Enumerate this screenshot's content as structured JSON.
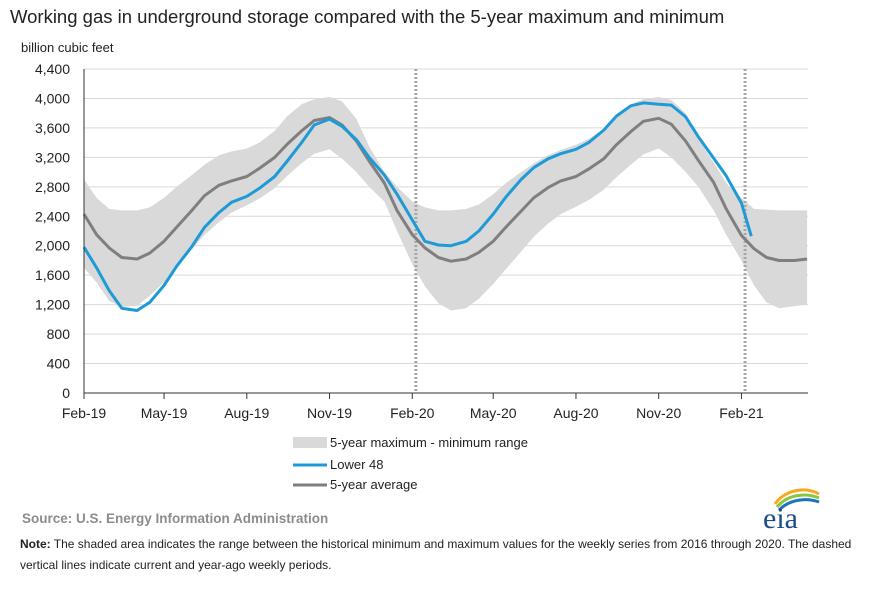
{
  "title": "Working gas in underground  storage compared with the 5-year maximum and minimum",
  "unit_label": "billion cubic feet",
  "source": "Source:  U.S. Energy Information Administration",
  "note_label": "Note:",
  "note_text": " The shaded area indicates the range between the historical minimum and maximum values for the weekly series from 2016 through 2020. The dashed vertical lines indicate current and year-ago weekly periods.",
  "logo_text": "eia",
  "colors": {
    "range_fill": "#d9d9d9",
    "lower48": "#1e9bd7",
    "avg": "#7f7f7f",
    "axis": "#333333",
    "gridline": "#d9d9d9",
    "dashed": "#a6a6a6"
  },
  "chart_data": {
    "type": "area",
    "title": "Working gas in underground  storage compared with the 5-year maximum and minimum",
    "ylabel": "billion cubic feet",
    "ylim": [
      0,
      4400
    ],
    "yticks": [
      "0",
      "400",
      "800",
      "1,200",
      "1,600",
      "2,000",
      "2,400",
      "2,800",
      "3,200",
      "3,600",
      "4,000",
      "4,400"
    ],
    "xlim": [
      "2019-02-01",
      "2021-04-16"
    ],
    "xticks": [
      {
        "date": "2019-02-01",
        "label": "Feb-19"
      },
      {
        "date": "2019-05-01",
        "label": "May-19"
      },
      {
        "date": "2019-08-01",
        "label": "Aug-19"
      },
      {
        "date": "2019-11-01",
        "label": "Nov-19"
      },
      {
        "date": "2020-02-01",
        "label": "Feb-20"
      },
      {
        "date": "2020-05-01",
        "label": "May-20"
      },
      {
        "date": "2020-08-01",
        "label": "Aug-20"
      },
      {
        "date": "2020-11-01",
        "label": "Nov-20"
      },
      {
        "date": "2021-02-01",
        "label": "Feb-21"
      }
    ],
    "grid": "horizontal",
    "legend_position": "bottom",
    "vertical_dashed_dates": [
      "2020-02-05",
      "2021-02-05"
    ],
    "range_series": {
      "name": "5-year maximum - minimum range",
      "dates": [
        "2019-02-01",
        "2019-02-15",
        "2019-03-01",
        "2019-03-15",
        "2019-04-01",
        "2019-04-15",
        "2019-05-01",
        "2019-05-15",
        "2019-06-01",
        "2019-06-15",
        "2019-07-01",
        "2019-07-15",
        "2019-08-01",
        "2019-08-15",
        "2019-09-01",
        "2019-09-15",
        "2019-10-01",
        "2019-10-15",
        "2019-11-01",
        "2019-11-15",
        "2019-12-01",
        "2019-12-15",
        "2020-01-01",
        "2020-01-15",
        "2020-02-01",
        "2020-02-15",
        "2020-03-01",
        "2020-03-15",
        "2020-04-01",
        "2020-04-15",
        "2020-05-01",
        "2020-05-15",
        "2020-06-01",
        "2020-06-15",
        "2020-07-01",
        "2020-07-15",
        "2020-08-01",
        "2020-08-15",
        "2020-09-01",
        "2020-09-15",
        "2020-10-01",
        "2020-10-15",
        "2020-11-01",
        "2020-11-15",
        "2020-12-01",
        "2020-12-15",
        "2021-01-01",
        "2021-01-15",
        "2021-02-01",
        "2021-02-15",
        "2021-03-01",
        "2021-03-15",
        "2021-04-01",
        "2021-04-15"
      ],
      "max": [
        2900,
        2650,
        2500,
        2480,
        2480,
        2520,
        2650,
        2800,
        2960,
        3100,
        3230,
        3280,
        3320,
        3400,
        3560,
        3760,
        3920,
        3990,
        4020,
        3960,
        3720,
        3350,
        3000,
        2800,
        2600,
        2520,
        2480,
        2480,
        2500,
        2560,
        2700,
        2850,
        3000,
        3120,
        3230,
        3300,
        3370,
        3450,
        3590,
        3760,
        3920,
        3990,
        4020,
        3980,
        3800,
        3450,
        3130,
        2850,
        2650,
        2500,
        2490,
        2480,
        2480,
        2480
      ],
      "min": [
        1700,
        1500,
        1250,
        1170,
        1180,
        1320,
        1500,
        1700,
        1950,
        2150,
        2320,
        2450,
        2550,
        2640,
        2780,
        2950,
        3120,
        3250,
        3310,
        3180,
        3000,
        2800,
        2600,
        2200,
        1750,
        1450,
        1220,
        1120,
        1150,
        1280,
        1480,
        1680,
        1920,
        2120,
        2300,
        2430,
        2530,
        2620,
        2760,
        2930,
        3100,
        3240,
        3320,
        3200,
        3000,
        2800,
        2480,
        2150,
        1800,
        1460,
        1230,
        1150,
        1180,
        1200
      ]
    },
    "series": [
      {
        "name": "Lower 48",
        "dates": [
          "2019-02-01",
          "2019-02-15",
          "2019-03-01",
          "2019-03-15",
          "2019-04-01",
          "2019-04-15",
          "2019-05-01",
          "2019-05-15",
          "2019-06-01",
          "2019-06-15",
          "2019-07-01",
          "2019-07-15",
          "2019-08-01",
          "2019-08-15",
          "2019-09-01",
          "2019-09-15",
          "2019-10-01",
          "2019-10-15",
          "2019-11-01",
          "2019-11-15",
          "2019-12-01",
          "2019-12-15",
          "2020-01-01",
          "2020-01-15",
          "2020-02-01",
          "2020-02-15",
          "2020-03-01",
          "2020-03-15",
          "2020-04-01",
          "2020-04-15",
          "2020-05-01",
          "2020-05-15",
          "2020-06-01",
          "2020-06-15",
          "2020-07-01",
          "2020-07-15",
          "2020-08-01",
          "2020-08-15",
          "2020-09-01",
          "2020-09-15",
          "2020-10-01",
          "2020-10-15",
          "2020-11-01",
          "2020-11-15",
          "2020-12-01",
          "2020-12-15",
          "2021-01-01",
          "2021-01-15",
          "2021-02-01",
          "2021-02-12"
        ],
        "values": [
          1980,
          1700,
          1390,
          1150,
          1120,
          1230,
          1460,
          1720,
          1990,
          2250,
          2450,
          2590,
          2670,
          2780,
          2940,
          3150,
          3400,
          3640,
          3720,
          3620,
          3440,
          3200,
          2960,
          2700,
          2350,
          2060,
          2010,
          2000,
          2060,
          2200,
          2430,
          2660,
          2900,
          3060,
          3180,
          3250,
          3310,
          3400,
          3570,
          3760,
          3900,
          3940,
          3920,
          3910,
          3750,
          3480,
          3190,
          2950,
          2580,
          2130
        ]
      },
      {
        "name": "5-year average",
        "dates": [
          "2019-02-01",
          "2019-02-15",
          "2019-03-01",
          "2019-03-15",
          "2019-04-01",
          "2019-04-15",
          "2019-05-01",
          "2019-05-15",
          "2019-06-01",
          "2019-06-15",
          "2019-07-01",
          "2019-07-15",
          "2019-08-01",
          "2019-08-15",
          "2019-09-01",
          "2019-09-15",
          "2019-10-01",
          "2019-10-15",
          "2019-11-01",
          "2019-11-15",
          "2019-12-01",
          "2019-12-15",
          "2020-01-01",
          "2020-01-15",
          "2020-02-01",
          "2020-02-15",
          "2020-03-01",
          "2020-03-15",
          "2020-04-01",
          "2020-04-15",
          "2020-05-01",
          "2020-05-15",
          "2020-06-01",
          "2020-06-15",
          "2020-07-01",
          "2020-07-15",
          "2020-08-01",
          "2020-08-15",
          "2020-09-01",
          "2020-09-15",
          "2020-10-01",
          "2020-10-15",
          "2020-11-01",
          "2020-11-15",
          "2020-12-01",
          "2020-12-15",
          "2021-01-01",
          "2021-01-15",
          "2021-02-01",
          "2021-02-15",
          "2021-03-01",
          "2021-03-15",
          "2021-04-01",
          "2021-04-15"
        ],
        "values": [
          2430,
          2150,
          1970,
          1840,
          1820,
          1900,
          2060,
          2250,
          2480,
          2680,
          2820,
          2880,
          2940,
          3050,
          3200,
          3380,
          3560,
          3700,
          3740,
          3640,
          3420,
          3150,
          2850,
          2480,
          2150,
          1970,
          1840,
          1790,
          1820,
          1910,
          2060,
          2250,
          2470,
          2650,
          2790,
          2880,
          2940,
          3040,
          3180,
          3370,
          3550,
          3690,
          3730,
          3650,
          3420,
          3160,
          2860,
          2500,
          2140,
          1960,
          1840,
          1800,
          1800,
          1820
        ]
      }
    ]
  }
}
